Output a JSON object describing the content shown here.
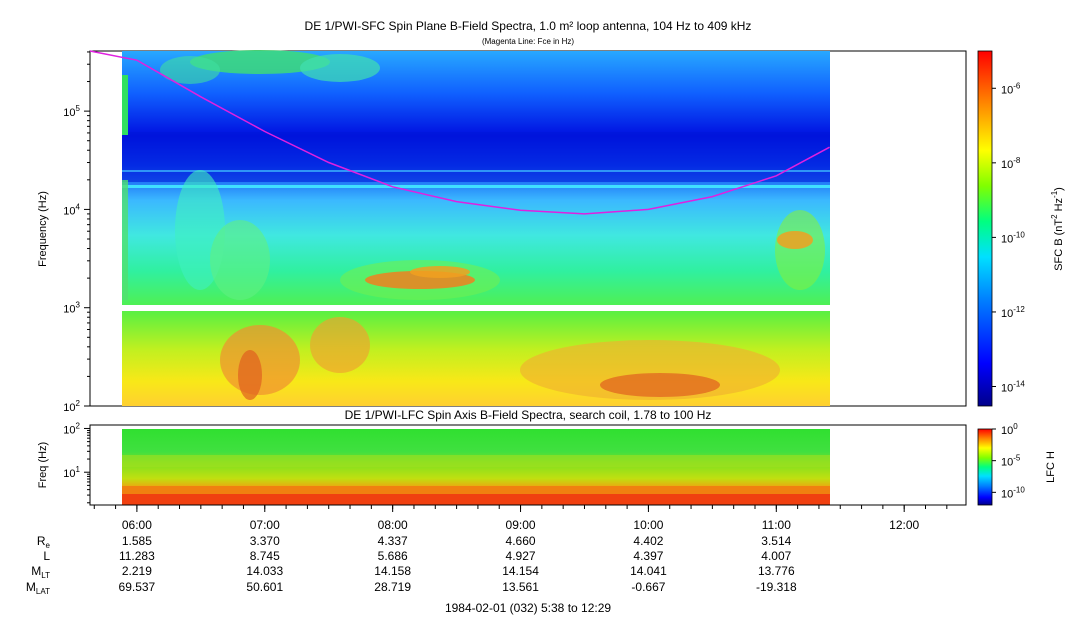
{
  "title": "DE 1/PWI-SFC  Spin Plane B-Field Spectra, 1.0 m² loop antenna, 104 Hz to 409 kHz",
  "subtitle": "(Magenta Line: Fce in Hz)",
  "chart_data": [
    {
      "type": "heatmap",
      "title": "DE 1/PWI-SFC  Spin Plane B-Field Spectra, 1.0 m² loop antenna, 104 Hz to 409 kHz",
      "subtitle": "(Magenta Line: Fce in Hz)",
      "ylabel": "Frequency (Hz)",
      "y_scale": "log",
      "ylim": [
        100,
        409000
      ],
      "y_ticks": [
        {
          "v": 100,
          "b": "10",
          "e": "2"
        },
        {
          "v": 1000,
          "b": "10",
          "e": "3"
        },
        {
          "v": 10000,
          "b": "10",
          "e": "4"
        },
        {
          "v": 100000,
          "b": "10",
          "e": "5"
        }
      ],
      "colorbar": {
        "label": "SFC B (nT",
        "label_exp": "2",
        "label_mid": " Hz",
        "label_exp2": "-1",
        "label_end": ")",
        "scale": "log",
        "range": [
          3e-15,
          1e-05
        ],
        "ticks": [
          {
            "v": 1e-06,
            "b": "10",
            "e": "-6"
          },
          {
            "v": 1e-08,
            "b": "10",
            "e": "-8"
          },
          {
            "v": 1e-10,
            "b": "10",
            "e": "-10"
          },
          {
            "v": 1e-12,
            "b": "10",
            "e": "-12"
          },
          {
            "v": 1e-14,
            "b": "10",
            "e": "-14"
          }
        ]
      },
      "data_gap_hz": [
        950,
        1050
      ],
      "fce_line": {
        "color": "#e020e0",
        "times": [
          "05:38",
          "06:00",
          "06:30",
          "07:00",
          "07:30",
          "08:00",
          "08:30",
          "09:00",
          "09:30",
          "10:00",
          "10:30",
          "11:00",
          "11:25"
        ],
        "hz": [
          600000,
          330000,
          140000,
          62000,
          30000,
          17000,
          12000,
          9800,
          9000,
          10000,
          13500,
          22000,
          43000
        ]
      }
    },
    {
      "type": "heatmap",
      "title": "DE 1/PWI-LFC  Spin Axis B-Field Spectra, search coil, 1.78 to 100 Hz",
      "ylabel": "Freq (Hz)",
      "y_scale": "log",
      "ylim": [
        1.78,
        120
      ],
      "y_ticks": [
        {
          "v": 10,
          "b": "10",
          "e": "1"
        },
        {
          "v": 100,
          "b": "10",
          "e": "2"
        }
      ],
      "colorbar": {
        "label": "LFC H",
        "scale": "log",
        "range": [
          1e-12,
          1
        ],
        "ticks": [
          {
            "v": 1,
            "b": "10",
            "e": "0"
          },
          {
            "v": 1e-05,
            "b": "10",
            "e": "-5"
          },
          {
            "v": 1e-10,
            "b": "10",
            "e": "-10"
          }
        ]
      }
    }
  ],
  "time_axis": {
    "start": "05:38",
    "end": "12:29",
    "data_end": "11:25",
    "ticks": [
      "06:00",
      "07:00",
      "08:00",
      "09:00",
      "10:00",
      "11:00",
      "12:00"
    ]
  },
  "ephemeris": {
    "rows": [
      {
        "label": "R",
        "sub": "e",
        "values": [
          "1.585",
          "3.370",
          "4.337",
          "4.660",
          "4.402",
          "3.514",
          ""
        ]
      },
      {
        "label": "L",
        "sub": "",
        "values": [
          "11.283",
          "8.745",
          "5.686",
          "4.927",
          "4.397",
          "4.007",
          ""
        ]
      },
      {
        "label": "M",
        "sub": "LT",
        "values": [
          "2.219",
          "14.033",
          "14.158",
          "14.154",
          "14.041",
          "13.776",
          ""
        ]
      },
      {
        "label": "M",
        "sub": "LAT",
        "values": [
          "69.537",
          "50.601",
          "28.719",
          "13.561",
          "-0.667",
          "-19.318",
          ""
        ]
      }
    ]
  },
  "date_caption": "1984-02-01 (032) 5:38 to 12:29",
  "colors": {
    "magenta_fce": "#e020e0",
    "colormap": [
      "#00008a",
      "#0000ff",
      "#0080ff",
      "#00e0ff",
      "#00ff80",
      "#80ff00",
      "#ffff00",
      "#ff8000",
      "#ff0000"
    ]
  }
}
